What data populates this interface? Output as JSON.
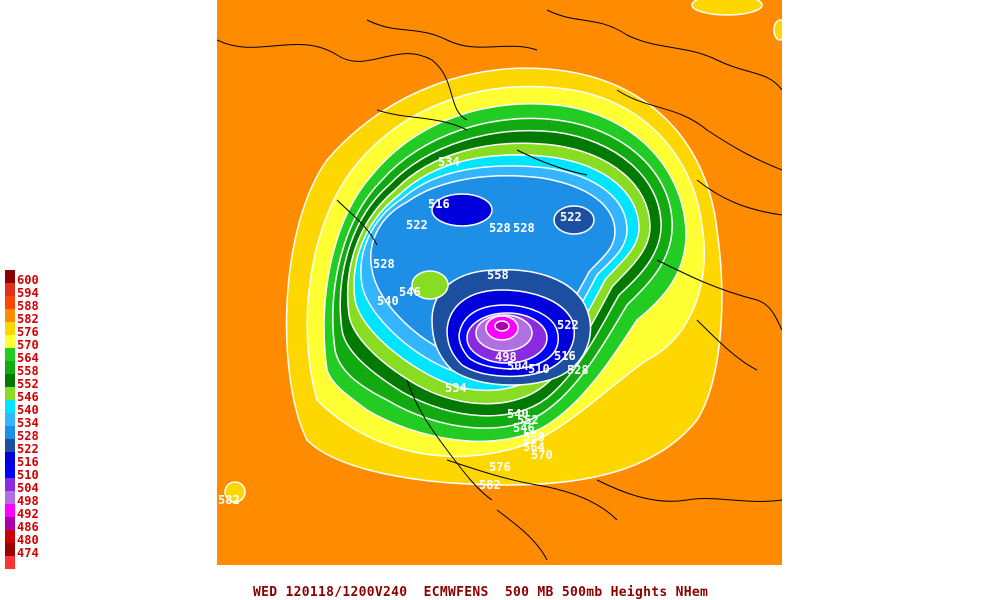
{
  "title": "WED 120118/1200V240  ECMWFENS  500 MB 500mb Heights NHem",
  "legend": [
    {
      "value": "600",
      "color": "#8b0000"
    },
    {
      "value": "594",
      "color": "#e0301e"
    },
    {
      "value": "588",
      "color": "#ff4500"
    },
    {
      "value": "582",
      "color": "#ff8c00"
    },
    {
      "value": "576",
      "color": "#ffd700"
    },
    {
      "value": "570",
      "color": "#ffff33"
    },
    {
      "value": "564",
      "color": "#22cc22"
    },
    {
      "value": "558",
      "color": "#11aa11"
    },
    {
      "value": "552",
      "color": "#007a00"
    },
    {
      "value": "546",
      "color": "#88dd22"
    },
    {
      "value": "540",
      "color": "#00e5ff"
    },
    {
      "value": "534",
      "color": "#33b5ff"
    },
    {
      "value": "528",
      "color": "#1e8fe6"
    },
    {
      "value": "522",
      "color": "#1c4fa0"
    },
    {
      "value": "516",
      "color": "#0000dd"
    },
    {
      "value": "510",
      "color": "#0000ff"
    },
    {
      "value": "504",
      "color": "#8a2be2"
    },
    {
      "value": "498",
      "color": "#b070e0"
    },
    {
      "value": "492",
      "color": "#ff00ff"
    },
    {
      "value": "486",
      "color": "#aa00aa"
    },
    {
      "value": "480",
      "color": "#cc0000"
    },
    {
      "value": "474",
      "color": "#990000"
    },
    {
      "value": "",
      "color": "#ff3333"
    }
  ],
  "contour_labels": [
    {
      "text": "534"
    },
    {
      "text": "516"
    },
    {
      "text": "522"
    },
    {
      "text": "528"
    },
    {
      "text": "528"
    },
    {
      "text": "522"
    },
    {
      "text": "528"
    },
    {
      "text": "546"
    },
    {
      "text": "540"
    },
    {
      "text": "558"
    },
    {
      "text": "522"
    },
    {
      "text": "498"
    },
    {
      "text": "516"
    },
    {
      "text": "504"
    },
    {
      "text": "510"
    },
    {
      "text": "528"
    },
    {
      "text": "534"
    },
    {
      "text": "540"
    },
    {
      "text": "546"
    },
    {
      "text": "552"
    },
    {
      "text": "558"
    },
    {
      "text": "564"
    },
    {
      "text": "570"
    },
    {
      "text": "576"
    },
    {
      "text": "582"
    },
    {
      "text": "582"
    }
  ]
}
